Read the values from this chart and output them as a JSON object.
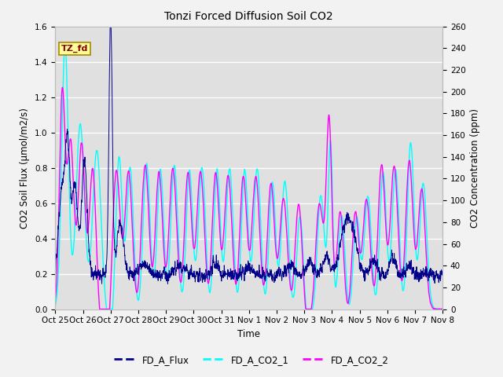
{
  "title": "Tonzi Forced Diffusion Soil CO2",
  "xlabel": "Time",
  "ylabel_left": "CO2 Soil Flux (μmol/m2/s)",
  "ylabel_right": "CO2 Concentration (ppm)",
  "ylim_left": [
    0.0,
    1.6
  ],
  "ylim_right": [
    0,
    260
  ],
  "yticks_left": [
    0.0,
    0.2,
    0.4,
    0.6,
    0.8,
    1.0,
    1.2,
    1.4,
    1.6
  ],
  "yticks_right": [
    0,
    20,
    40,
    60,
    80,
    100,
    120,
    140,
    160,
    180,
    200,
    220,
    240,
    260
  ],
  "color_flux": "#00008B",
  "color_co2_1": "#00FFFF",
  "color_co2_2": "#FF00FF",
  "legend_labels": [
    "FD_A_Flux",
    "FD_A_CO2_1",
    "FD_A_CO2_2"
  ],
  "watermark_text": "TZ_fd",
  "watermark_color": "#8B0000",
  "watermark_bg": "#FFFF99",
  "background_color": "#E0E0E0",
  "grid_color": "#FFFFFF",
  "fig_bg": "#F2F2F2",
  "n_points": 2016
}
